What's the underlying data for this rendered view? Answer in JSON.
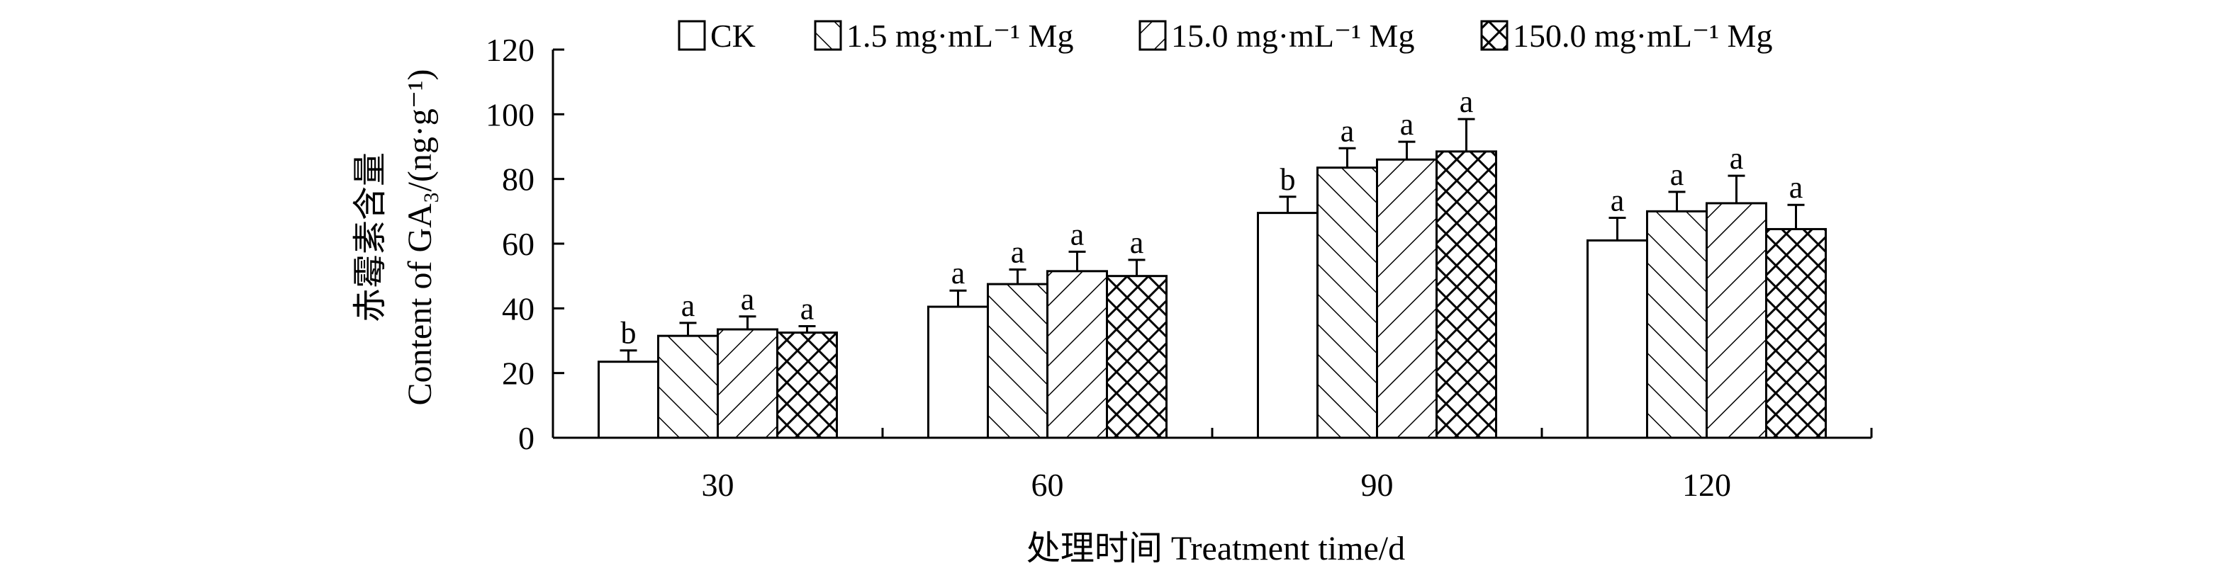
{
  "chart_data": {
    "type": "bar",
    "categories": [
      "30",
      "60",
      "90",
      "120"
    ],
    "series": [
      {
        "name": "CK",
        "values": [
          23.5,
          40.5,
          69.5,
          61.0
        ],
        "errors": [
          3.5,
          5.0,
          5.0,
          7.0
        ],
        "labels": [
          "b",
          "a",
          "b",
          "a"
        ],
        "pattern": "none"
      },
      {
        "name": "1.5 mg·mL⁻¹ Mg",
        "values": [
          31.5,
          47.5,
          83.5,
          70.0
        ],
        "errors": [
          4.0,
          4.5,
          6.0,
          6.0
        ],
        "labels": [
          "a",
          "a",
          "a",
          "a"
        ],
        "pattern": "forward"
      },
      {
        "name": "15.0 mg·mL⁻¹ Mg",
        "values": [
          33.5,
          51.5,
          86.0,
          72.5
        ],
        "errors": [
          4.0,
          6.0,
          5.5,
          8.5
        ],
        "labels": [
          "a",
          "a",
          "a",
          "a"
        ],
        "pattern": "backward"
      },
      {
        "name": "150.0 mg·mL⁻¹ Mg",
        "values": [
          32.5,
          50.0,
          88.5,
          64.5
        ],
        "errors": [
          2.0,
          5.0,
          10.0,
          7.5
        ],
        "labels": [
          "a",
          "a",
          "a",
          "a"
        ],
        "pattern": "cross"
      }
    ],
    "xlabel": "处理时间 Treatment time/d",
    "ylabel_cn": "赤霉素含量",
    "ylabel_en": "Content of GA₃/(ng·g⁻¹)",
    "ylim": [
      0,
      120
    ],
    "yticks": [
      0,
      20,
      40,
      60,
      80,
      100,
      120
    ],
    "grid": false,
    "legend_position": "top"
  }
}
